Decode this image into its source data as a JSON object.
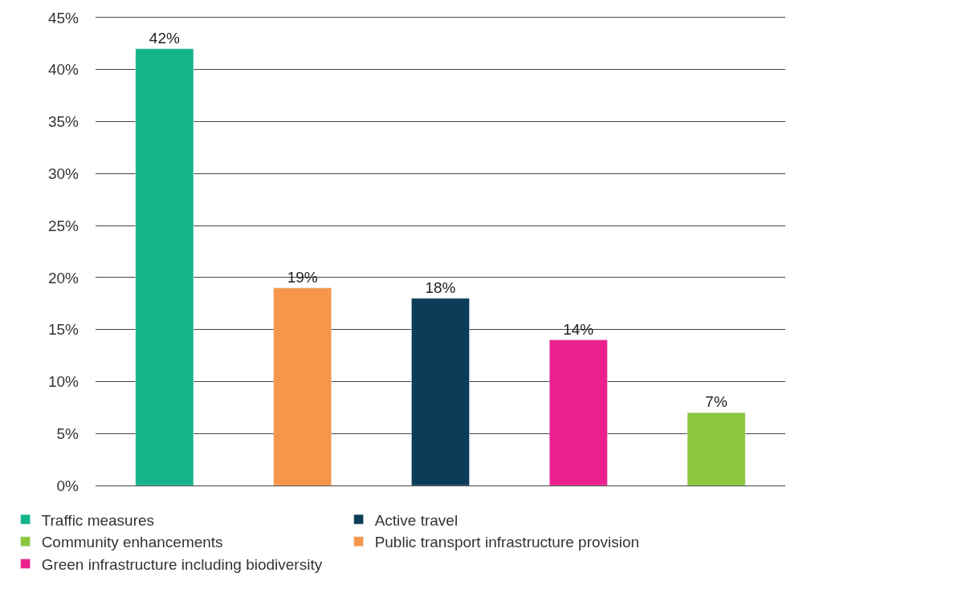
{
  "chart_data": {
    "type": "bar",
    "categories": [
      null,
      null,
      null,
      null,
      null
    ],
    "series": [
      {
        "name": "Traffic measures",
        "color": "#14b48a",
        "values": [
          42,
          null,
          null,
          null,
          null
        ],
        "value_labels": [
          "42%",
          null,
          null,
          null,
          null
        ]
      },
      {
        "name": "Public transport infrastructure provision",
        "color": "#f7964a",
        "values": [
          null,
          19,
          null,
          null,
          null
        ],
        "value_labels": [
          null,
          "19%",
          null,
          null,
          null
        ]
      },
      {
        "name": "Active travel",
        "color": "#0b3c58",
        "values": [
          null,
          null,
          18,
          null,
          null
        ],
        "value_labels": [
          null,
          null,
          "18%",
          null,
          null
        ]
      },
      {
        "name": "Green infrastructure including biodiversity",
        "color": "#ec1f8f",
        "values": [
          null,
          null,
          null,
          14,
          null
        ],
        "value_labels": [
          null,
          null,
          null,
          "14%",
          null
        ]
      },
      {
        "name": "Community enhancements",
        "color": "#8dc63f",
        "values": [
          null,
          null,
          null,
          null,
          7
        ],
        "value_labels": [
          null,
          null,
          null,
          null,
          "7%"
        ]
      }
    ],
    "stacked": true,
    "ylim": [
      0,
      45
    ],
    "yticks": [
      {
        "value": 0,
        "label": "0%"
      },
      {
        "value": 5,
        "label": "5%"
      },
      {
        "value": 10,
        "label": "10%"
      },
      {
        "value": 15,
        "label": "15%"
      },
      {
        "value": 20,
        "label": "20%"
      },
      {
        "value": 25,
        "label": "25%"
      },
      {
        "value": 30,
        "label": "30%"
      },
      {
        "value": 35,
        "label": "35%"
      },
      {
        "value": 40,
        "label": "40%"
      },
      {
        "value": 45,
        "label": "45%"
      }
    ],
    "grid": "y",
    "legend": "bottom",
    "tick_labels": "y"
  }
}
